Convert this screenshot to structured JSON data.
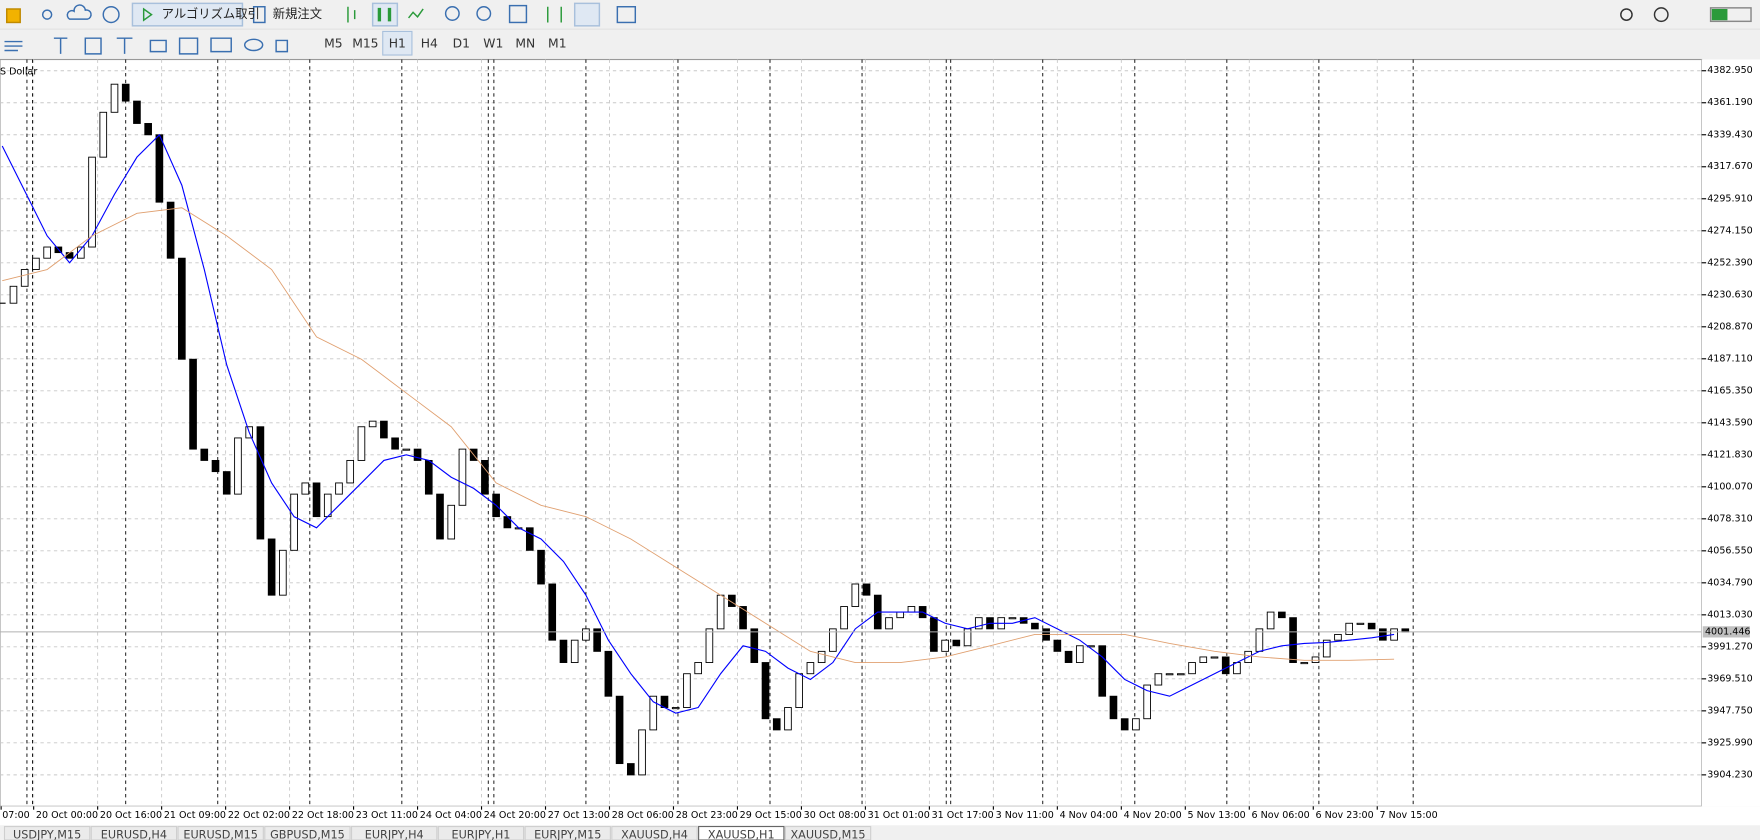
{
  "toolbar": {
    "algo_trading": "アルゴリズム取引",
    "new_order": "新規注文",
    "timeframes": [
      "M5",
      "M15",
      "H1",
      "H4",
      "D1",
      "W1",
      "MN",
      "M1"
    ],
    "active_timeframe": 2
  },
  "chart_data": {
    "type": "candlestick",
    "symbol": "S Dollar",
    "ylim": [
      3882.85,
      4390.58
    ],
    "yticks": [
      {
        "value": 4382.95,
        "label": "4382.950"
      },
      {
        "value": 4361.19,
        "label": "4361.190"
      },
      {
        "value": 4339.43,
        "label": "4339.430"
      },
      {
        "value": 4317.67,
        "label": "4317.670"
      },
      {
        "value": 4295.91,
        "label": "4295.910"
      },
      {
        "value": 4274.15,
        "label": "4274.150"
      },
      {
        "value": 4252.39,
        "label": "4252.390"
      },
      {
        "value": 4230.63,
        "label": "4230.630"
      },
      {
        "value": 4208.87,
        "label": "4208.870"
      },
      {
        "value": 4187.11,
        "label": "4187.110"
      },
      {
        "value": 4165.35,
        "label": "4165.350"
      },
      {
        "value": 4143.59,
        "label": "4143.590"
      },
      {
        "value": 4121.83,
        "label": "4121.830"
      },
      {
        "value": 4100.07,
        "label": "4100.070"
      },
      {
        "value": 4078.31,
        "label": "4078.310"
      },
      {
        "value": 4056.55,
        "label": "4056.550"
      },
      {
        "value": 4034.79,
        "label": "4034.790"
      },
      {
        "value": 4013.03,
        "label": "4013.030"
      },
      {
        "value": 3991.27,
        "label": "3991.270"
      },
      {
        "value": 3969.51,
        "label": "3969.510"
      },
      {
        "value": 3947.75,
        "label": "3947.750"
      },
      {
        "value": 3925.99,
        "label": "3925.990"
      },
      {
        "value": 3904.23,
        "label": "3904.230"
      }
    ],
    "current_price": 4001.446,
    "grid": true,
    "xlabels": [
      "07:00",
      "20 Oct 00:00",
      "20 Oct 16:00",
      "21 Oct 09:00",
      "22 Oct 02:00",
      "22 Oct 18:00",
      "23 Oct 11:00",
      "24 Oct 04:00",
      "24 Oct 20:00",
      "27 Oct 13:00",
      "28 Oct 06:00",
      "28 Oct 23:00",
      "29 Oct 15:00",
      "30 Oct 08:00",
      "31 Oct 01:00",
      "31 Oct 17:00",
      "3 Nov 11:00",
      "4 Nov 04:00",
      "4 Nov 20:00",
      "5 Nov 13:00",
      "6 Nov 06:00",
      "6 Nov 23:00",
      "7 Nov 15:00"
    ],
    "closes": [
      4224.9,
      4236.4,
      4247.8,
      4255.5,
      4263.1,
      4259.3,
      4255.5,
      4263.1,
      4324.2,
      4354.7,
      4373.8,
      4362.3,
      4347.1,
      4339.4,
      4293.6,
      4255.5,
      4186.8,
      4125.7,
      4118.0,
      4110.4,
      4095.1,
      4133.3,
      4140.9,
      4064.6,
      4026.4,
      4056.9,
      4095.1,
      4102.7,
      4079.8,
      4095.1,
      4102.7,
      4118.0,
      4140.9,
      4144.7,
      4133.3,
      4125.7,
      4125.7,
      4118.0,
      4095.1,
      4064.6,
      4087.5,
      4125.7,
      4118.0,
      4095.1,
      4079.8,
      4072.2,
      4072.2,
      4056.9,
      4034.0,
      3995.8,
      3980.6,
      3995.8,
      4003.5,
      3988.2,
      3957.7,
      3911.9,
      3904.2,
      3934.8,
      3957.7,
      3950.0,
      3950.0,
      3973.0,
      3980.6,
      4003.5,
      4026.4,
      4018.7,
      4003.5,
      3980.6,
      3942.4,
      3934.8,
      3950.0,
      3973.0,
      3980.6,
      3988.2,
      4003.5,
      4018.7,
      4034.0,
      4026.4,
      4003.5,
      4011.1,
      4014.9,
      4018.7,
      4011.1,
      3988.2,
      3995.8,
      3992.0,
      4003.5,
      4011.1,
      4003.5,
      4011.1,
      4011.1,
      4007.3,
      4003.5,
      3995.8,
      3988.2,
      3980.6,
      3992.0,
      3992.0,
      3957.7,
      3942.4,
      3934.8,
      3942.4,
      3965.3,
      3973.0,
      3973.0,
      3973.0,
      3980.6,
      3984.4,
      3984.4,
      3973.0,
      3980.6,
      3988.2,
      4003.5,
      4014.9,
      4011.1,
      3980.6,
      3980.6,
      3984.4,
      3995.8,
      3999.7,
      4007.3,
      4007.3,
      4003.5,
      3995.8,
      4003.5,
      4001.4
    ],
    "series": [
      {
        "color": "#0000ff",
        "values": [
          4331.8,
          4301.3,
          4270.7,
          4252.4,
          4270.7,
          4299.0,
          4324.2,
          4339.4,
          4305.1,
          4247.8,
          4182.9,
          4137.1,
          4102.7,
          4079.8,
          4072.2,
          4087.5,
          4102.7,
          4118.0,
          4121.8,
          4118.0,
          4106.6,
          4099.0,
          4087.5,
          4072.2,
          4064.6,
          4049.3,
          4026.4,
          3995.8,
          3973.0,
          3953.9,
          3946.2,
          3950.0,
          3973.0,
          3992.0,
          3988.2,
          3976.8,
          3969.1,
          3980.6,
          4003.5,
          4014.9,
          4014.9,
          4014.9,
          4007.3,
          4003.5,
          4007.3,
          4007.3,
          4011.1,
          4003.5,
          3995.8,
          3984.4,
          3969.1,
          3961.5,
          3957.7,
          3965.3,
          3973.0,
          3980.6,
          3988.2,
          3992.0,
          3993.6,
          3994.3,
          3995.8,
          3997.4,
          3999.7
        ]
      },
      {
        "color": "#e0a070",
        "values": [
          4240.2,
          4247.8,
          4270.7,
          4286.0,
          4289.8,
          4270.7,
          4247.8,
          4202.0,
          4186.8,
          4163.8,
          4140.9,
          4102.7,
          4087.5,
          4079.8,
          4064.6,
          4045.5,
          4026.4,
          4007.3,
          3988.2,
          3980.6,
          3980.6,
          3984.4,
          3992.0,
          3999.7,
          3999.7,
          3999.7,
          3993.6,
          3988.2,
          3984.4,
          3982.1,
          3982.1,
          3982.9
        ]
      }
    ]
  },
  "tabs": {
    "items": [
      "USDJPY,M15",
      "EURUSD,H4",
      "EURUSD,M15",
      "GBPUSD,M15",
      "EURJPY,H4",
      "EURJPY,H1",
      "EURJPY,M15",
      "XAUUSD,H4",
      "XAUUSD,H1",
      "XAUUSD,M15"
    ],
    "active": 8
  }
}
